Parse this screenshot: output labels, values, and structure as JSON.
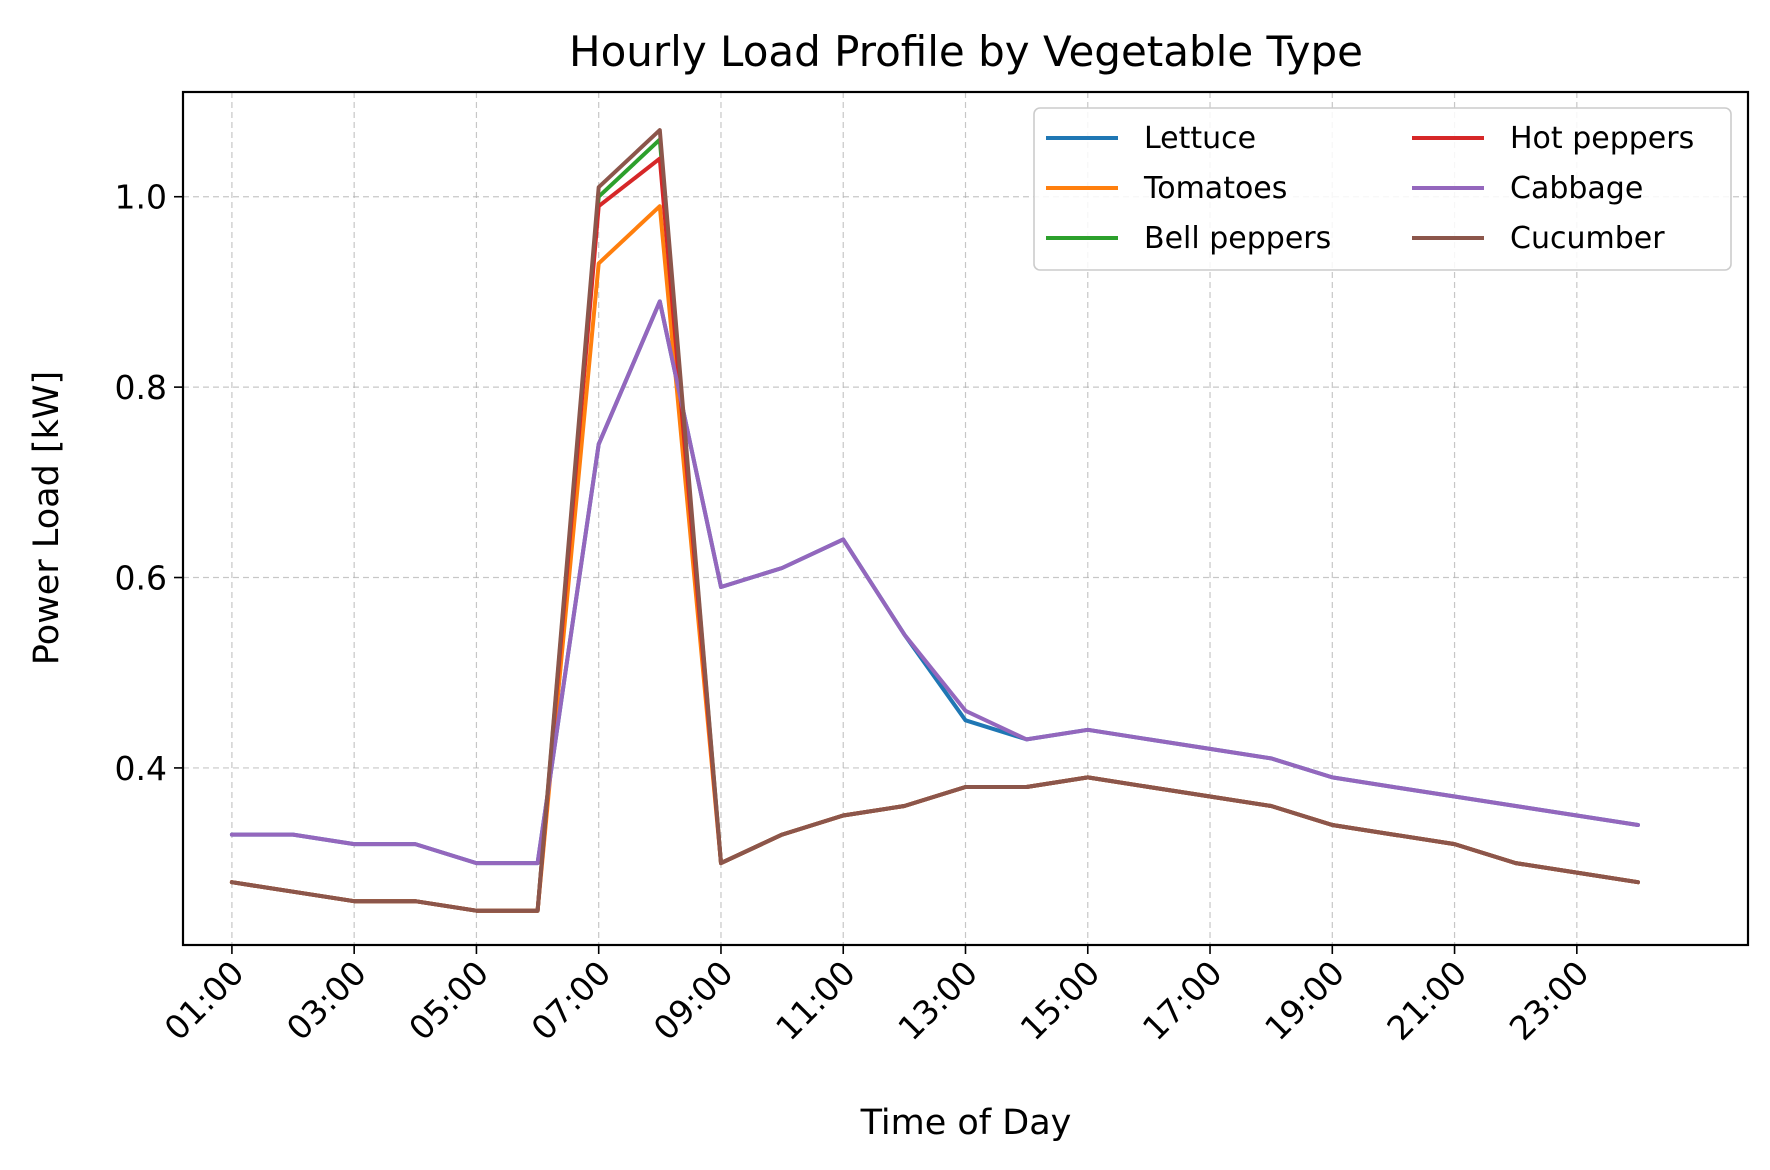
{
  "chart_data": {
    "type": "line",
    "title": "Hourly Load Profile by Vegetable Type",
    "xlabel": "Time of Day",
    "ylabel": "Power Load [kW]",
    "x_hours": [
      1,
      2,
      3,
      4,
      5,
      6,
      7,
      8,
      9,
      10,
      11,
      12,
      13,
      14,
      15,
      16,
      17,
      18,
      19,
      20,
      21,
      22,
      23,
      24
    ],
    "xlim": [
      0.2,
      25.8
    ],
    "ylim": [
      0.214,
      1.11
    ],
    "x_ticks": [
      1,
      3,
      5,
      7,
      9,
      11,
      13,
      15,
      17,
      19,
      21,
      23
    ],
    "x_tick_labels": [
      "01:00",
      "03:00",
      "05:00",
      "07:00",
      "09:00",
      "11:00",
      "13:00",
      "15:00",
      "17:00",
      "19:00",
      "21:00",
      "23:00"
    ],
    "y_ticks": [
      0.4,
      0.6,
      0.8,
      1.0
    ],
    "y_tick_labels": [
      "0.4",
      "0.6",
      "0.8",
      "1.0"
    ],
    "grid": true,
    "legend_position": "top-right",
    "legend_columns": 2,
    "series": [
      {
        "name": "Lettuce",
        "color": "#1f77b4",
        "values": [
          0.33,
          0.33,
          0.32,
          0.32,
          0.3,
          0.3,
          0.74,
          0.89,
          0.59,
          0.61,
          0.64,
          0.54,
          0.45,
          0.43,
          0.44,
          0.43,
          0.42,
          0.41,
          0.39,
          0.38,
          0.37,
          0.36,
          0.35,
          0.34
        ]
      },
      {
        "name": "Tomatoes",
        "color": "#ff7f0e",
        "values": [
          0.28,
          0.27,
          0.26,
          0.26,
          0.25,
          0.25,
          0.93,
          0.99,
          0.3,
          0.33,
          0.35,
          0.36,
          0.38,
          0.38,
          0.39,
          0.38,
          0.37,
          0.36,
          0.34,
          0.33,
          0.32,
          0.3,
          0.29,
          0.28
        ]
      },
      {
        "name": "Bell peppers",
        "color": "#2ca02c",
        "values": [
          0.28,
          0.27,
          0.26,
          0.26,
          0.25,
          0.25,
          1.0,
          1.06,
          0.3,
          0.33,
          0.35,
          0.36,
          0.38,
          0.38,
          0.39,
          0.38,
          0.37,
          0.36,
          0.34,
          0.33,
          0.32,
          0.3,
          0.29,
          0.28
        ]
      },
      {
        "name": "Hot peppers",
        "color": "#d62728",
        "values": [
          0.28,
          0.27,
          0.26,
          0.26,
          0.25,
          0.25,
          0.99,
          1.04,
          0.3,
          0.33,
          0.35,
          0.36,
          0.38,
          0.38,
          0.39,
          0.38,
          0.37,
          0.36,
          0.34,
          0.33,
          0.32,
          0.3,
          0.29,
          0.28
        ]
      },
      {
        "name": "Cabbage",
        "color": "#9467bd",
        "values": [
          0.33,
          0.33,
          0.32,
          0.32,
          0.3,
          0.3,
          0.74,
          0.89,
          0.59,
          0.61,
          0.64,
          0.54,
          0.46,
          0.43,
          0.44,
          0.43,
          0.42,
          0.41,
          0.39,
          0.38,
          0.37,
          0.36,
          0.35,
          0.34
        ]
      },
      {
        "name": "Cucumber",
        "color": "#8c564b",
        "values": [
          0.28,
          0.27,
          0.26,
          0.26,
          0.25,
          0.25,
          1.01,
          1.07,
          0.3,
          0.33,
          0.35,
          0.36,
          0.38,
          0.38,
          0.39,
          0.38,
          0.37,
          0.36,
          0.34,
          0.33,
          0.32,
          0.3,
          0.29,
          0.28
        ]
      }
    ]
  }
}
